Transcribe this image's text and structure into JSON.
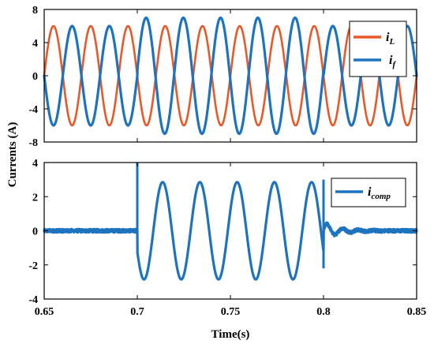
{
  "chart_data": [
    {
      "type": "line",
      "ylabel": "Currents (A)",
      "xlabel": "",
      "xlim": [
        0.65,
        0.85
      ],
      "ylim": [
        -8,
        8
      ],
      "xticks": [],
      "yticks": [
        "-8",
        "-4",
        "0",
        "4",
        "8"
      ],
      "yticks_values": [
        -8,
        -4,
        0,
        4,
        8
      ],
      "grid": false,
      "legend_position": "top-right",
      "frequency_hz": 50,
      "series": [
        {
          "name": "i",
          "sub": "L",
          "color": "#E8592A",
          "amplitude": 6.0,
          "phase_deg": 180,
          "segments": [
            {
              "t_start": 0.65,
              "t_end": 0.85,
              "amplitude": 6.0
            }
          ]
        },
        {
          "name": "i",
          "sub": "f",
          "color": "#1E73BE",
          "segments": [
            {
              "t_start": 0.65,
              "t_end": 0.7,
              "amplitude": 6.0,
              "phase_deg": 0
            },
            {
              "t_start": 0.7,
              "t_end": 0.8,
              "amplitude": 7.0,
              "phase_deg": 5
            },
            {
              "t_start": 0.8,
              "t_end": 0.85,
              "amplitude": 6.0,
              "phase_deg": 0
            }
          ]
        }
      ]
    },
    {
      "type": "line",
      "ylabel": "",
      "xlabel": "Time(s)",
      "xlim": [
        0.65,
        0.85
      ],
      "ylim": [
        -4,
        4
      ],
      "xticks": [
        "0.65",
        "0.7",
        "0.75",
        "0.8",
        "0.85"
      ],
      "xticks_values": [
        0.65,
        0.7,
        0.75,
        0.8,
        0.85
      ],
      "yticks": [
        "-4",
        "-2",
        "0",
        "2",
        "4"
      ],
      "yticks_values": [
        -4,
        -2,
        0,
        2,
        4
      ],
      "grid": false,
      "legend_position": "top-right",
      "frequency_hz": 50,
      "series": [
        {
          "name": "i",
          "sub": "comp",
          "color": "#1E73BE",
          "segments": [
            {
              "t_start": 0.65,
              "t_end": 0.7,
              "amplitude": 0.0,
              "noise": 0.1
            },
            {
              "t_start": 0.7,
              "t_end": 0.8,
              "amplitude": 2.85,
              "phase_deg": -155
            },
            {
              "t_start": 0.8,
              "t_end": 0.85,
              "amplitude": 0.0,
              "noise": 0.1,
              "ringing": 0.5
            }
          ],
          "spikes": [
            {
              "t": 0.7,
              "min": -0.2,
              "max": 4.0
            },
            {
              "t": 0.8,
              "min": -2.2,
              "max": 3.0
            }
          ]
        }
      ]
    }
  ],
  "ylabel_shared": "Currents (A)",
  "xlabel_shared": "Time(s)"
}
